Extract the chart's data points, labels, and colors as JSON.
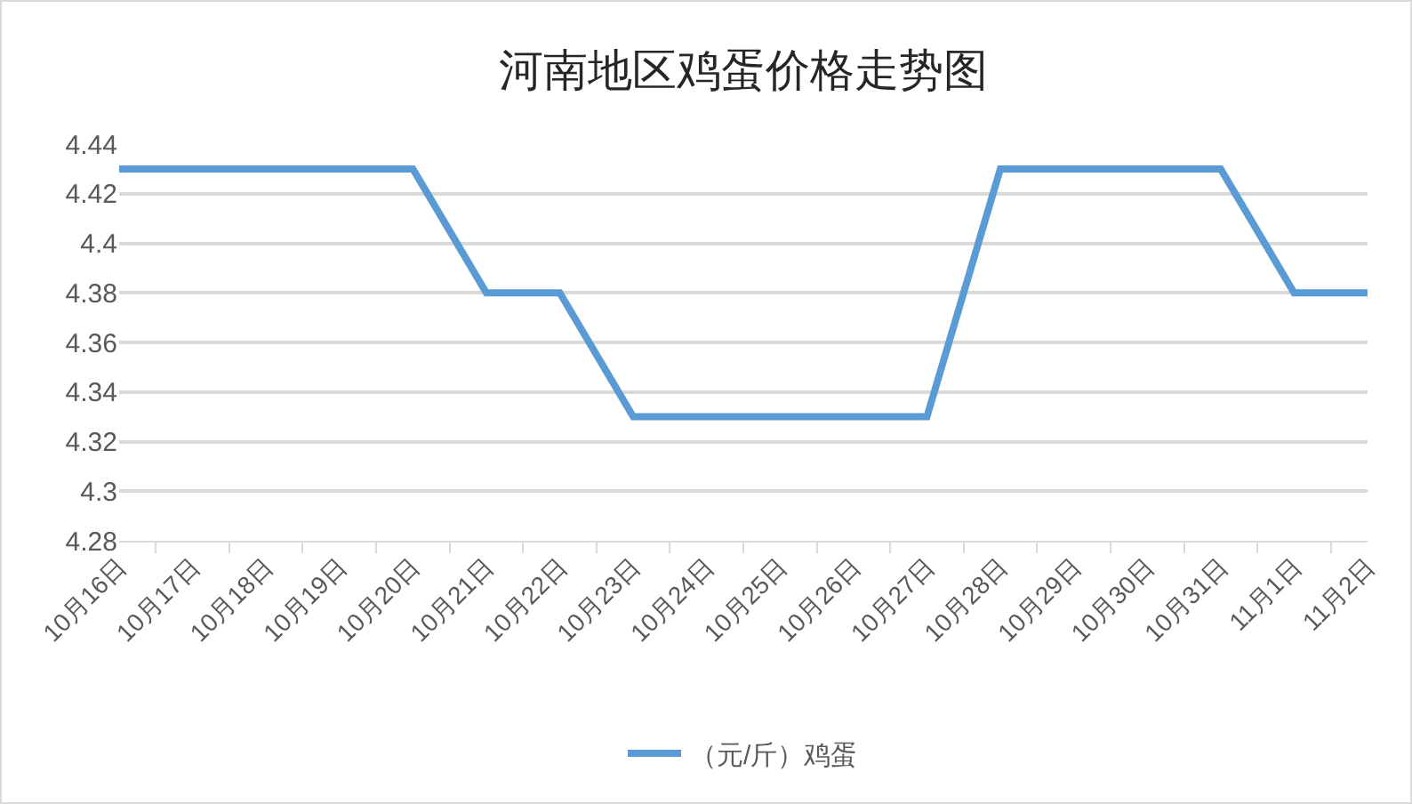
{
  "chart_data": {
    "type": "line",
    "title": "河南地区鸡蛋价格走势图",
    "categories": [
      "10月16日",
      "10月17日",
      "10月18日",
      "10月19日",
      "10月20日",
      "10月21日",
      "10月22日",
      "10月23日",
      "10月24日",
      "10月25日",
      "10月26日",
      "10月27日",
      "10月28日",
      "10月29日",
      "10月30日",
      "10月31日",
      "11月1日",
      "11月2日"
    ],
    "series": [
      {
        "name": "（元/斤）鸡蛋",
        "color": "#5b9bd5",
        "values": [
          4.43,
          4.43,
          4.43,
          4.43,
          4.43,
          4.38,
          4.38,
          4.33,
          4.33,
          4.33,
          4.33,
          4.33,
          4.43,
          4.43,
          4.43,
          4.43,
          4.38,
          4.38
        ]
      }
    ],
    "ylim": [
      4.28,
      4.44
    ],
    "yticks": [
      4.28,
      4.3,
      4.32,
      4.34,
      4.36,
      4.38,
      4.4,
      4.42,
      4.44
    ],
    "grid": "y",
    "legend": "bottom",
    "line_style": "solid"
  }
}
